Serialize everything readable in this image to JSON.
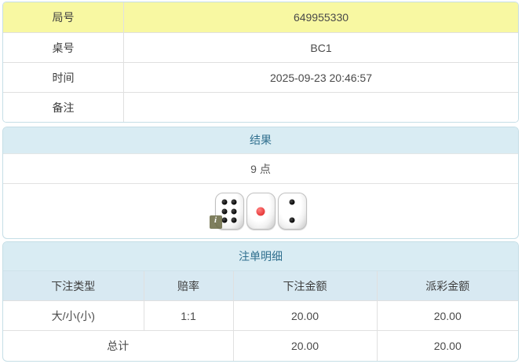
{
  "info_table": {
    "rows": [
      {
        "label": "局号",
        "value": "649955330",
        "highlight": true
      },
      {
        "label": "桌号",
        "value": "BC1",
        "highlight": false
      },
      {
        "label": "时间",
        "value": "2025-09-23 20:46:57",
        "highlight": false
      },
      {
        "label": "备注",
        "value": "",
        "highlight": false
      }
    ]
  },
  "result_panel": {
    "title": "结果",
    "points": "9 点",
    "dice": [
      6,
      1,
      2
    ],
    "info_badge": "i"
  },
  "bets_panel": {
    "title": "注单明细",
    "columns": [
      "下注类型",
      "赔率",
      "下注金额",
      "派彩金额"
    ],
    "rows": [
      {
        "type": "大/小(小)",
        "odds": "1:1",
        "bet": "20.00",
        "payout": "20.00"
      }
    ],
    "total": {
      "label": "总计",
      "bet": "20.00",
      "payout": "20.00"
    }
  },
  "colors": {
    "highlight_yellow": "#f8f8a2",
    "panel_header_bg": "#d9ecf3",
    "panel_header_text": "#31708f",
    "col_header_bg": "#d8e9f2",
    "odds_red": "#e53535",
    "border": "#c5dee6"
  }
}
